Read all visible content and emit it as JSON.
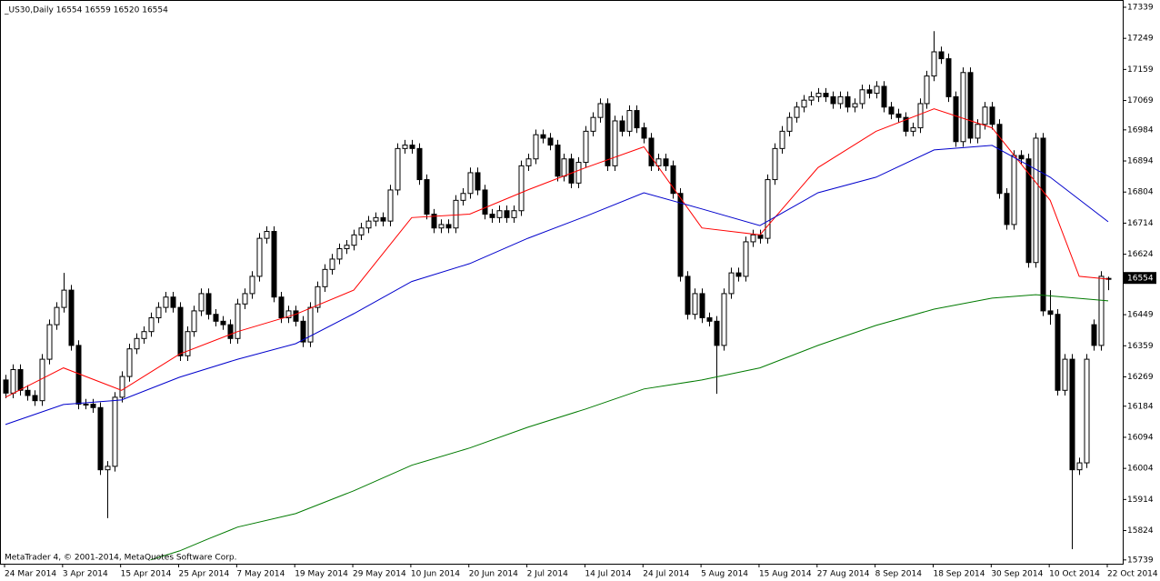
{
  "chart_data": {
    "type": "candlestick",
    "title": "_US30,Daily  16554 16559 16520 16554",
    "copyright": "MetaTrader 4, © 2001-2014, MetaQuotes Software Corp.",
    "last_price": 16554,
    "ylim": [
      15728,
      17360
    ],
    "yticks": [
      15739,
      15824,
      15914,
      16004,
      16094,
      16184,
      16269,
      16359,
      16449,
      16624,
      16714,
      16804,
      16894,
      16984,
      17069,
      17159,
      17249,
      17339
    ],
    "bull_color": "#ffffff",
    "bear_color": "#000000",
    "wick_color": "#000000",
    "categories": [
      "24 Mar 2014",
      null,
      null,
      null,
      null,
      null,
      null,
      null,
      "3 Apr 2014",
      null,
      null,
      null,
      null,
      null,
      null,
      null,
      "15 Apr 2014",
      null,
      null,
      null,
      null,
      null,
      null,
      null,
      "25 Apr 2014",
      null,
      null,
      null,
      null,
      null,
      null,
      null,
      "7 May 2014",
      null,
      null,
      null,
      null,
      null,
      null,
      null,
      "19 May 2014",
      null,
      null,
      null,
      null,
      null,
      null,
      null,
      "29 May 2014",
      null,
      null,
      null,
      null,
      null,
      null,
      null,
      "10 Jun 2014",
      null,
      null,
      null,
      null,
      null,
      null,
      null,
      "20 Jun 2014",
      null,
      null,
      null,
      null,
      null,
      null,
      null,
      "2 Jul 2014",
      null,
      null,
      null,
      null,
      null,
      null,
      null,
      "14 Jul 2014",
      null,
      null,
      null,
      null,
      null,
      null,
      null,
      "24 Jul 2014",
      null,
      null,
      null,
      null,
      null,
      null,
      null,
      "5 Aug 2014",
      null,
      null,
      null,
      null,
      null,
      null,
      null,
      "15 Aug 2014",
      null,
      null,
      null,
      null,
      null,
      null,
      null,
      "27 Aug 2014",
      null,
      null,
      null,
      null,
      null,
      null,
      null,
      "8 Sep 2014",
      null,
      null,
      null,
      null,
      null,
      null,
      null,
      "18 Sep 2014",
      null,
      null,
      null,
      null,
      null,
      null,
      null,
      "30 Sep 2014",
      null,
      null,
      null,
      null,
      null,
      null,
      null,
      "10 Oct 2014",
      null,
      null,
      null,
      null,
      null,
      null,
      null,
      "22 Oct 2014"
    ],
    "open": [
      16260,
      16222,
      16290,
      16230,
      16215,
      16200,
      16320,
      16420,
      16470,
      16520,
      16360,
      16190,
      16190,
      16180,
      16000,
      16010,
      16210,
      16270,
      16350,
      16380,
      16400,
      16440,
      16470,
      16500,
      16470,
      16330,
      16400,
      16460,
      16510,
      16450,
      16430,
      16420,
      16380,
      16480,
      16510,
      16560,
      16670,
      16690,
      16500,
      16440,
      16460,
      16430,
      16370,
      16470,
      16530,
      16580,
      16610,
      16640,
      16650,
      16680,
      16700,
      16720,
      16730,
      16720,
      16810,
      16930,
      16940,
      16930,
      16840,
      16740,
      16700,
      16710,
      16700,
      16780,
      16800,
      16860,
      16810,
      16740,
      16730,
      16750,
      16730,
      16750,
      16880,
      16900,
      16970,
      16960,
      16940,
      16850,
      16900,
      16830,
      16890,
      16980,
      17020,
      17060,
      16880,
      17010,
      16980,
      17040,
      16990,
      16960,
      16880,
      16900,
      16880,
      16800,
      16560,
      16450,
      16510,
      16440,
      16430,
      16360,
      16510,
      16570,
      16560,
      16660,
      16680,
      16670,
      16840,
      16930,
      16980,
      17020,
      17050,
      17070,
      17080,
      17090,
      17080,
      17060,
      17080,
      17050,
      17060,
      17100,
      17090,
      17110,
      17050,
      17030,
      17020,
      16980,
      16990,
      17060,
      17140,
      17210,
      17190,
      17080,
      16950,
      17150,
      16960,
      17000,
      17050,
      17000,
      16800,
      16710,
      16910,
      16900,
      16600,
      16960,
      16460,
      16450,
      16230,
      16320,
      16000,
      16020,
      16420,
      16360,
      16554
    ],
    "high": [
      16275,
      16305,
      16305,
      16245,
      16230,
      16335,
      16435,
      16485,
      16570,
      16535,
      16375,
      16205,
      16205,
      16195,
      16025,
      16225,
      16285,
      16365,
      16395,
      16415,
      16455,
      16485,
      16515,
      16515,
      16485,
      16415,
      16475,
      16525,
      16525,
      16465,
      16445,
      16435,
      16495,
      16525,
      16575,
      16685,
      16705,
      16705,
      16515,
      16475,
      16475,
      16445,
      16485,
      16545,
      16595,
      16625,
      16655,
      16665,
      16695,
      16715,
      16735,
      16745,
      16745,
      16825,
      16945,
      16955,
      16955,
      16945,
      16855,
      16755,
      16725,
      16725,
      16795,
      16815,
      16875,
      16875,
      16825,
      16755,
      16765,
      16765,
      16765,
      16895,
      16915,
      16985,
      16985,
      16975,
      16955,
      16915,
      16915,
      16905,
      16995,
      17035,
      17075,
      17075,
      17025,
      17025,
      17055,
      17055,
      17005,
      16975,
      16915,
      16915,
      16895,
      16815,
      16575,
      16525,
      16525,
      16455,
      16445,
      16525,
      16585,
      16585,
      16675,
      16695,
      16695,
      16855,
      16945,
      16995,
      17035,
      17065,
      17085,
      17095,
      17105,
      17105,
      17095,
      17095,
      17095,
      17075,
      17115,
      17115,
      17125,
      17125,
      17065,
      17045,
      17035,
      17005,
      17075,
      17155,
      17270,
      17225,
      17205,
      17095,
      17165,
      17165,
      17015,
      17065,
      17065,
      17015,
      16815,
      16925,
      16925,
      16915,
      16975,
      16975,
      16520,
      16465,
      16335,
      16335,
      16035,
      16335,
      16435,
      16575,
      16559
    ],
    "low": [
      16207,
      16207,
      16215,
      16200,
      16185,
      16185,
      16305,
      16405,
      16455,
      16345,
      16175,
      16175,
      16165,
      15985,
      15860,
      15995,
      16195,
      16255,
      16335,
      16365,
      16385,
      16425,
      16455,
      16455,
      16315,
      16315,
      16385,
      16445,
      16435,
      16415,
      16405,
      16365,
      16365,
      16465,
      16495,
      16545,
      16655,
      16485,
      16425,
      16425,
      16415,
      16355,
      16355,
      16455,
      16515,
      16565,
      16595,
      16625,
      16635,
      16665,
      16685,
      16705,
      16705,
      16705,
      16795,
      16915,
      16915,
      16825,
      16725,
      16685,
      16685,
      16685,
      16685,
      16765,
      16785,
      16795,
      16725,
      16715,
      16715,
      16715,
      16715,
      16735,
      16865,
      16885,
      16945,
      16925,
      16835,
      16835,
      16815,
      16815,
      16875,
      16965,
      17005,
      16865,
      16865,
      16965,
      16965,
      16975,
      16945,
      16865,
      16865,
      16865,
      16785,
      16545,
      16435,
      16435,
      16425,
      16415,
      16220,
      16345,
      16495,
      16545,
      16545,
      16645,
      16655,
      16655,
      16825,
      16915,
      16965,
      17005,
      17035,
      17055,
      17065,
      17065,
      17045,
      17045,
      17035,
      17035,
      17045,
      17075,
      17075,
      17035,
      17015,
      17005,
      16965,
      16965,
      16975,
      17045,
      17125,
      17175,
      17065,
      16935,
      16935,
      16945,
      16945,
      16985,
      16985,
      16785,
      16695,
      16695,
      16885,
      16585,
      16585,
      16445,
      16420,
      16215,
      16215,
      15770,
      15985,
      16005,
      16345,
      16345,
      16520
    ],
    "close": [
      16222,
      16290,
      16230,
      16215,
      16200,
      16320,
      16420,
      16470,
      16520,
      16360,
      16190,
      16190,
      16180,
      16000,
      16010,
      16210,
      16270,
      16350,
      16380,
      16400,
      16440,
      16470,
      16500,
      16470,
      16330,
      16400,
      16460,
      16510,
      16450,
      16430,
      16420,
      16380,
      16480,
      16510,
      16560,
      16670,
      16690,
      16500,
      16440,
      16460,
      16430,
      16370,
      16470,
      16530,
      16580,
      16610,
      16640,
      16650,
      16680,
      16700,
      16720,
      16730,
      16720,
      16810,
      16930,
      16940,
      16930,
      16840,
      16740,
      16700,
      16710,
      16700,
      16780,
      16800,
      16860,
      16810,
      16740,
      16730,
      16750,
      16730,
      16750,
      16880,
      16900,
      16970,
      16960,
      16940,
      16850,
      16900,
      16830,
      16890,
      16980,
      17020,
      17060,
      16880,
      17010,
      16980,
      17040,
      16990,
      16960,
      16880,
      16900,
      16880,
      16800,
      16560,
      16450,
      16510,
      16440,
      16430,
      16360,
      16510,
      16570,
      16560,
      16660,
      16680,
      16670,
      16840,
      16930,
      16980,
      17020,
      17050,
      17070,
      17080,
      17090,
      17080,
      17060,
      17080,
      17050,
      17060,
      17100,
      17090,
      17110,
      17050,
      17030,
      17020,
      16980,
      16990,
      17060,
      17140,
      17210,
      17190,
      17080,
      16950,
      17150,
      16960,
      17000,
      17050,
      17000,
      16800,
      16710,
      16910,
      16900,
      16600,
      16960,
      16460,
      16450,
      16230,
      16320,
      16000,
      16020,
      16320,
      16360,
      16560,
      16554
    ],
    "overlays": [
      {
        "color": "#ff0000",
        "x": [
          0,
          8,
          16,
          24,
          32,
          40,
          48,
          56,
          64,
          72,
          80,
          88,
          96,
          104,
          112,
          120,
          128,
          136,
          144,
          148,
          152
        ],
        "values": [
          16210,
          16295,
          16230,
          16335,
          16400,
          16450,
          16520,
          16730,
          16740,
          16810,
          16875,
          16935,
          16700,
          16680,
          16875,
          16980,
          17045,
          16990,
          16780,
          16560,
          16552
        ]
      },
      {
        "color": "#0000cc",
        "x": [
          0,
          8,
          16,
          24,
          32,
          40,
          48,
          56,
          64,
          72,
          80,
          88,
          96,
          104,
          112,
          120,
          128,
          136,
          144,
          152
        ],
        "values": [
          16131,
          16189,
          16202,
          16268,
          16320,
          16365,
          16452,
          16545,
          16597,
          16670,
          16734,
          16802,
          16755,
          16707,
          16802,
          16847,
          16926,
          16939,
          16847,
          16718
        ]
      },
      {
        "color": "#007a00",
        "x": [
          20,
          24,
          28,
          32,
          40,
          48,
          56,
          64,
          72,
          80,
          88,
          96,
          104,
          112,
          120,
          128,
          136,
          142,
          152
        ],
        "values": [
          15739,
          15765,
          15800,
          15834,
          15873,
          15939,
          16013,
          16063,
          16123,
          16176,
          16234,
          16260,
          16295,
          16360,
          16418,
          16465,
          16497,
          16507,
          16489
        ]
      }
    ]
  }
}
